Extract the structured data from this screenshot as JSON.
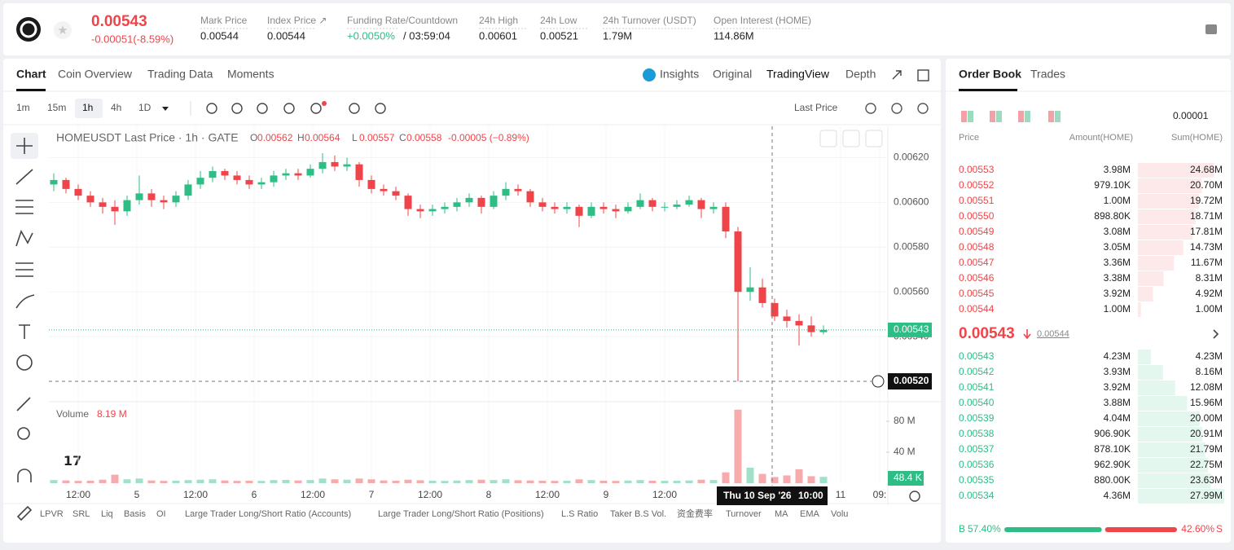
{
  "header": {
    "price": "0.00543",
    "change": "-0.00051(-8.59%)",
    "stats": [
      {
        "label": "Mark Price",
        "value": "0.00544"
      },
      {
        "label": "Index Price ↗",
        "value": "0.00544"
      },
      {
        "label": "Funding Rate/Countdown",
        "value": "+0.0050%",
        "extra": "/ 03:59:04"
      },
      {
        "label": "24h High",
        "value": "0.00601"
      },
      {
        "label": "24h Low",
        "value": "0.00521"
      },
      {
        "label": "24h Turnover (USDT)",
        "value": "1.79M"
      },
      {
        "label": "Open Interest (HOME)",
        "value": "114.86M"
      }
    ]
  },
  "tabs": [
    "Chart",
    "Coin Overview",
    "Trading Data",
    "Moments"
  ],
  "views": [
    "Insights",
    "Original",
    "TradingView",
    "Depth"
  ],
  "intervals": [
    "1m",
    "15m",
    "1h",
    "4h",
    "1D"
  ],
  "price_source": "Last Price",
  "indicators": [
    "LPVR",
    "SRL",
    "Liq",
    "Basis",
    "OI",
    "Large Trader Long/Short Ratio (Accounts)",
    "Large Trader Long/Short Ratio (Positions)",
    "L.S Ratio",
    "Taker B.S Vol.",
    "资金费率",
    "Turnover",
    "MA",
    "EMA",
    "Volu"
  ],
  "chart_data": {
    "type": "candlestick",
    "title": "HOMEUSDT Last Price · 1h · GATE",
    "legend": [
      {
        "key": "O",
        "value": "0.00562"
      },
      {
        "key": "H",
        "value": "0.00564"
      },
      {
        "key": "L",
        "value": "0.00557"
      },
      {
        "key": "C",
        "value": "0.00558"
      }
    ],
    "legend_change": "-0.00005 (−0.89%)",
    "up_color": "#2ebd85",
    "down_color": "#ef454a",
    "xlim": [
      0,
      171
    ],
    "xticks": [
      {
        "value": 6,
        "label": "12:00"
      },
      {
        "value": 18,
        "label": "5"
      },
      {
        "value": 30,
        "label": "12:00"
      },
      {
        "value": 42,
        "label": "6"
      },
      {
        "value": 54,
        "label": "12:00"
      },
      {
        "value": 66,
        "label": "7"
      },
      {
        "value": 78,
        "label": "12:00"
      },
      {
        "value": 90,
        "label": "8"
      },
      {
        "value": 102,
        "label": "12:00"
      },
      {
        "value": 114,
        "label": "9"
      },
      {
        "value": 126,
        "label": "12:00"
      },
      {
        "value": 162,
        "label": "11"
      },
      {
        "value": 170,
        "label": "09:"
      }
    ],
    "ylim": [
      0.00512,
      0.00634
    ],
    "yticks": [
      {
        "value": 0.0062,
        "label": "0.00620"
      },
      {
        "value": 0.006,
        "label": "0.00600"
      },
      {
        "value": 0.0058,
        "label": "0.00580"
      },
      {
        "value": 0.0056,
        "label": "0.00560"
      },
      {
        "value": 0.0054,
        "label": "0.00540"
      }
    ],
    "last_price": {
      "value": 0.00543,
      "label": "0.00543"
    },
    "crosshair": {
      "x": 148,
      "date": "Thu 10 Sep '26",
      "time": "10:00",
      "price": {
        "value": 0.0052,
        "label": "0.00520"
      }
    },
    "x": [
      1,
      3.5,
      6,
      8.5,
      11,
      13.5,
      16,
      18.5,
      21,
      23.5,
      26,
      28.5,
      31,
      33.5,
      36,
      38.5,
      41,
      43.5,
      46,
      48.5,
      51,
      53.5,
      56,
      58.5,
      61,
      63.5,
      66,
      68.5,
      71,
      73.5,
      76,
      78.5,
      81,
      83.5,
      86,
      88.5,
      91,
      93.5,
      96,
      98.5,
      101,
      103.5,
      106,
      108.5,
      111,
      113.5,
      116,
      118.5,
      121,
      123.5,
      126,
      128.5,
      131,
      133.5,
      136,
      138.5,
      141,
      143.5,
      146,
      148.5,
      151,
      153.5,
      156,
      158.5
    ],
    "ohlc": [
      [
        0.00608,
        0.00613,
        0.00605,
        0.0061
      ],
      [
        0.0061,
        0.00611,
        0.00604,
        0.00606
      ],
      [
        0.00606,
        0.00608,
        0.00601,
        0.00603
      ],
      [
        0.00603,
        0.00605,
        0.00598,
        0.006
      ],
      [
        0.006,
        0.00602,
        0.00595,
        0.00598
      ],
      [
        0.00598,
        0.00601,
        0.0059,
        0.00596
      ],
      [
        0.00596,
        0.00603,
        0.00594,
        0.00601
      ],
      [
        0.00601,
        0.00612,
        0.00599,
        0.00604
      ],
      [
        0.00604,
        0.00606,
        0.00598,
        0.00601
      ],
      [
        0.00601,
        0.00603,
        0.00597,
        0.006
      ],
      [
        0.006,
        0.00605,
        0.00598,
        0.00603
      ],
      [
        0.00603,
        0.0061,
        0.00601,
        0.00608
      ],
      [
        0.00608,
        0.00614,
        0.00606,
        0.00611
      ],
      [
        0.00611,
        0.00616,
        0.00609,
        0.00614
      ],
      [
        0.00614,
        0.00615,
        0.0061,
        0.00612
      ],
      [
        0.00612,
        0.00614,
        0.00608,
        0.0061
      ],
      [
        0.0061,
        0.00612,
        0.00606,
        0.00608
      ],
      [
        0.00608,
        0.00611,
        0.00606,
        0.00609
      ],
      [
        0.00609,
        0.00614,
        0.00607,
        0.00612
      ],
      [
        0.00612,
        0.00615,
        0.0061,
        0.00613
      ],
      [
        0.00613,
        0.00615,
        0.0061,
        0.00612
      ],
      [
        0.00612,
        0.00617,
        0.00611,
        0.00615
      ],
      [
        0.00615,
        0.00622,
        0.00613,
        0.00618
      ],
      [
        0.00618,
        0.00621,
        0.00614,
        0.00616
      ],
      [
        0.00616,
        0.0062,
        0.00614,
        0.00617
      ],
      [
        0.00617,
        0.00618,
        0.00607,
        0.0061
      ],
      [
        0.0061,
        0.00612,
        0.00604,
        0.00606
      ],
      [
        0.00606,
        0.00608,
        0.00603,
        0.00605
      ],
      [
        0.00605,
        0.00607,
        0.00601,
        0.00603
      ],
      [
        0.00603,
        0.00604,
        0.00594,
        0.00597
      ],
      [
        0.00597,
        0.00599,
        0.00593,
        0.00596
      ],
      [
        0.00596,
        0.00599,
        0.00594,
        0.00597
      ],
      [
        0.00597,
        0.006,
        0.00595,
        0.00598
      ],
      [
        0.00598,
        0.00602,
        0.00596,
        0.006
      ],
      [
        0.006,
        0.00604,
        0.00598,
        0.00602
      ],
      [
        0.00602,
        0.00603,
        0.00595,
        0.00598
      ],
      [
        0.00598,
        0.00605,
        0.00597,
        0.00603
      ],
      [
        0.00603,
        0.00609,
        0.00601,
        0.00606
      ],
      [
        0.00606,
        0.00608,
        0.00603,
        0.00605
      ],
      [
        0.00605,
        0.00606,
        0.00598,
        0.006
      ],
      [
        0.006,
        0.00602,
        0.00596,
        0.00598
      ],
      [
        0.00598,
        0.006,
        0.00595,
        0.00597
      ],
      [
        0.00597,
        0.006,
        0.00595,
        0.00598
      ],
      [
        0.00598,
        0.00599,
        0.00589,
        0.00594
      ],
      [
        0.00594,
        0.006,
        0.00593,
        0.00598
      ],
      [
        0.00598,
        0.006,
        0.00595,
        0.00597
      ],
      [
        0.00597,
        0.00599,
        0.00593,
        0.00596
      ],
      [
        0.00596,
        0.006,
        0.00595,
        0.00598
      ],
      [
        0.00598,
        0.00604,
        0.00597,
        0.00601
      ],
      [
        0.00601,
        0.00602,
        0.00596,
        0.00598
      ],
      [
        0.00598,
        0.006,
        0.00596,
        0.00598
      ],
      [
        0.00598,
        0.00601,
        0.00597,
        0.00599
      ],
      [
        0.00599,
        0.00603,
        0.00598,
        0.00601
      ],
      [
        0.00601,
        0.00602,
        0.00593,
        0.00597
      ],
      [
        0.00597,
        0.006,
        0.00595,
        0.00598
      ],
      [
        0.00598,
        0.006,
        0.00584,
        0.00587
      ],
      [
        0.00587,
        0.00589,
        0.0052,
        0.0056
      ],
      [
        0.0056,
        0.00571,
        0.00556,
        0.00562
      ],
      [
        0.00562,
        0.00566,
        0.00553,
        0.00555
      ],
      [
        0.00555,
        0.00557,
        0.00547,
        0.00549
      ],
      [
        0.00549,
        0.00552,
        0.00544,
        0.00547
      ],
      [
        0.00547,
        0.0055,
        0.00536,
        0.00545
      ],
      [
        0.00545,
        0.00549,
        0.0054,
        0.00542
      ],
      [
        0.00542,
        0.00545,
        0.00541,
        0.00543
      ]
    ],
    "volume_title": "Volume",
    "volume_current": "8.19 M",
    "volume_ylim": [
      0,
      100
    ],
    "volume_yticks": [
      {
        "value": 80,
        "label": "80 M"
      },
      {
        "value": 40,
        "label": "40 M"
      }
    ],
    "volume_axis_tag": "48.4 K",
    "volume": [
      4,
      3.5,
      3,
      3.2,
      4.5,
      11,
      5,
      6,
      3.5,
      3,
      3.2,
      4,
      4.5,
      5,
      3.5,
      3,
      3.2,
      3,
      4,
      4.2,
      3.5,
      4,
      6,
      5,
      4.5,
      6,
      5,
      3.5,
      3.2,
      4.5,
      3.8,
      3.2,
      3,
      3.4,
      4,
      4.5,
      4,
      5,
      3.8,
      3.5,
      3.2,
      3,
      3.1,
      5,
      4,
      3.2,
      3,
      3.4,
      4,
      3.2,
      3,
      3.1,
      3.5,
      4.5,
      4,
      14,
      95,
      20,
      12,
      8,
      10,
      18,
      9,
      8.19
    ]
  },
  "order_book": {
    "tabs": [
      "Order Book",
      "Trades"
    ],
    "precision": "0.00001",
    "columns": [
      "Price",
      "Amount(HOME)",
      "Sum(HOME)"
    ],
    "asks": [
      {
        "price": "0.00553",
        "amount": "3.98M",
        "sum": {
          "value": 24.68,
          "label": "24.68M"
        }
      },
      {
        "price": "0.00552",
        "amount": "979.10K",
        "sum": {
          "value": 20.7,
          "label": "20.70M"
        }
      },
      {
        "price": "0.00551",
        "amount": "1.00M",
        "sum": {
          "value": 19.72,
          "label": "19.72M"
        }
      },
      {
        "price": "0.00550",
        "amount": "898.80K",
        "sum": {
          "value": 18.71,
          "label": "18.71M"
        }
      },
      {
        "price": "0.00549",
        "amount": "3.08M",
        "sum": {
          "value": 17.81,
          "label": "17.81M"
        }
      },
      {
        "price": "0.00548",
        "amount": "3.05M",
        "sum": {
          "value": 14.73,
          "label": "14.73M"
        }
      },
      {
        "price": "0.00547",
        "amount": "3.36M",
        "sum": {
          "value": 11.67,
          "label": "11.67M"
        }
      },
      {
        "price": "0.00546",
        "amount": "3.38M",
        "sum": {
          "value": 8.31,
          "label": "8.31M"
        }
      },
      {
        "price": "0.00545",
        "amount": "3.92M",
        "sum": {
          "value": 4.92,
          "label": "4.92M"
        }
      },
      {
        "price": "0.00544",
        "amount": "1.00M",
        "sum": {
          "value": 1,
          "label": "1.00M"
        }
      }
    ],
    "last": "0.00543",
    "mark": "0.00544",
    "bids": [
      {
        "price": "0.00543",
        "amount": "4.23M",
        "sum": {
          "value": 4.23,
          "label": "4.23M"
        }
      },
      {
        "price": "0.00542",
        "amount": "3.93M",
        "sum": {
          "value": 8.16,
          "label": "8.16M"
        }
      },
      {
        "price": "0.00541",
        "amount": "3.92M",
        "sum": {
          "value": 12.08,
          "label": "12.08M"
        }
      },
      {
        "price": "0.00540",
        "amount": "3.88M",
        "sum": {
          "value": 15.96,
          "label": "15.96M"
        }
      },
      {
        "price": "0.00539",
        "amount": "4.04M",
        "sum": {
          "value": 20,
          "label": "20.00M"
        }
      },
      {
        "price": "0.00538",
        "amount": "906.90K",
        "sum": {
          "value": 20.91,
          "label": "20.91M"
        }
      },
      {
        "price": "0.00537",
        "amount": "878.10K",
        "sum": {
          "value": 21.79,
          "label": "21.79M"
        }
      },
      {
        "price": "0.00536",
        "amount": "962.90K",
        "sum": {
          "value": 22.75,
          "label": "22.75M"
        }
      },
      {
        "price": "0.00535",
        "amount": "880.00K",
        "sum": {
          "value": 23.63,
          "label": "23.63M"
        }
      },
      {
        "price": "0.00534",
        "amount": "4.36M",
        "sum": {
          "value": 27.99,
          "label": "27.99M"
        }
      }
    ],
    "buy": {
      "key": "B",
      "value": 57.4,
      "label": "57.40%"
    },
    "sell": {
      "key": "S",
      "value": 42.6,
      "label": "42.60%"
    }
  }
}
